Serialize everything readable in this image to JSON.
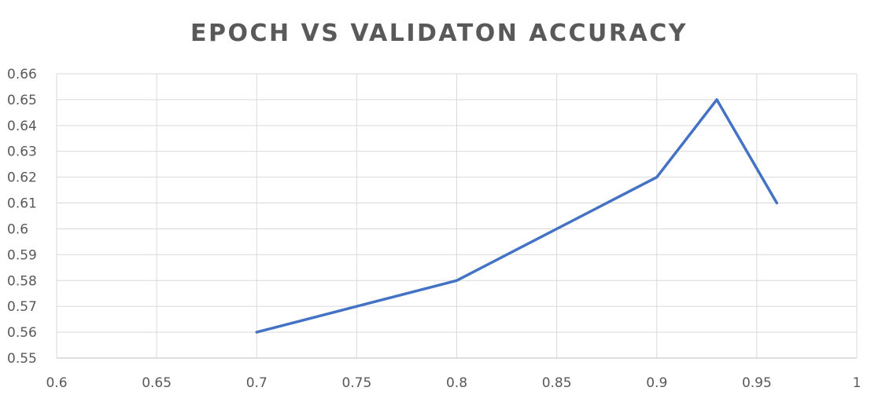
{
  "chart_data": {
    "type": "line",
    "title": "EPOCH VS VALIDATON ACCURACY",
    "xlabel": "",
    "ylabel": "",
    "xlim": [
      0.6,
      1
    ],
    "ylim": [
      0.55,
      0.66
    ],
    "x_ticks": [
      "0.6",
      "0.65",
      "0.7",
      "0.75",
      "0.8",
      "0.85",
      "0.9",
      "0.95",
      "1"
    ],
    "y_ticks": [
      "0.66",
      "0.65",
      "0.64",
      "0.63",
      "0.62",
      "0.61",
      "0.6",
      "0.59",
      "0.58",
      "0.57",
      "0.56",
      "0.55"
    ],
    "grid": true,
    "legend": "none",
    "series": [
      {
        "color": "#4472c4",
        "points": [
          {
            "x": 0.7,
            "y": 0.56
          },
          {
            "x": 0.8,
            "y": 0.58
          },
          {
            "x": 0.9,
            "y": 0.62
          },
          {
            "x": 0.93,
            "y": 0.65
          },
          {
            "x": 0.96,
            "y": 0.61
          }
        ]
      }
    ]
  }
}
